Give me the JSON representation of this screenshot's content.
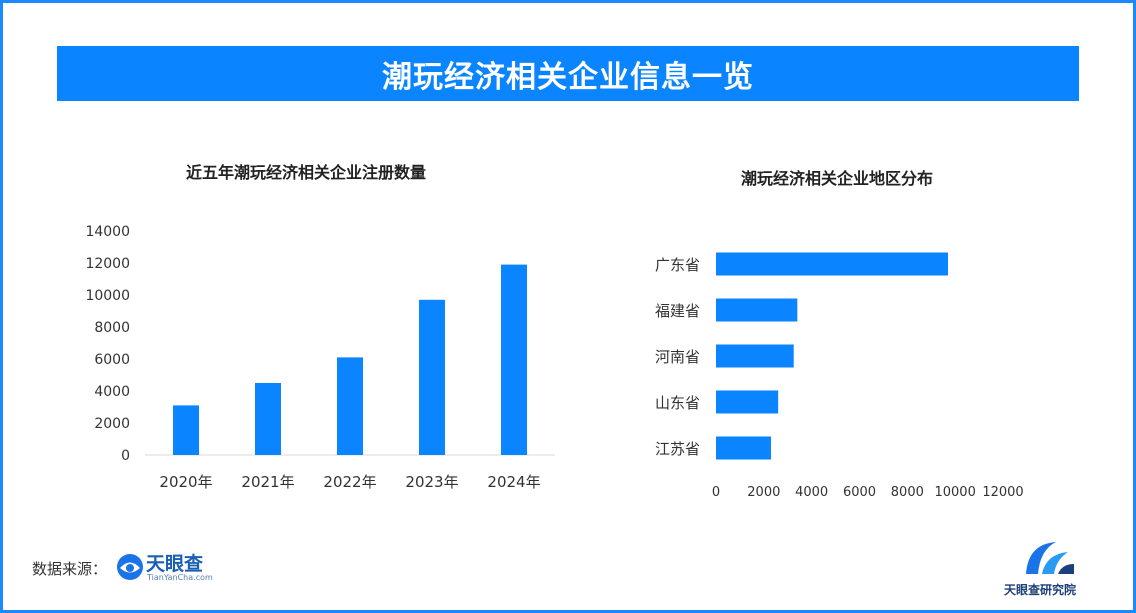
{
  "header": {
    "title": "潮玩经济相关企业信息一览"
  },
  "chart_data": [
    {
      "type": "bar",
      "title": "近五年潮玩经济相关企业注册数量",
      "categories": [
        "2020年",
        "2021年",
        "2022年",
        "2023年",
        "2024年"
      ],
      "values": [
        3100,
        4500,
        6100,
        9700,
        11900
      ],
      "ylim": [
        0,
        14000
      ],
      "yticks": [
        0,
        2000,
        4000,
        6000,
        8000,
        10000,
        12000,
        14000
      ],
      "color": "#0a84ff",
      "grid": false
    },
    {
      "type": "bar",
      "orientation": "horizontal",
      "title": "潮玩经济相关企业地区分布",
      "categories": [
        "广东省",
        "福建省",
        "河南省",
        "山东省",
        "江苏省"
      ],
      "values": [
        9700,
        3400,
        3250,
        2600,
        2300
      ],
      "xlim": [
        0,
        12000
      ],
      "xticks": [
        0,
        2000,
        4000,
        6000,
        8000,
        10000,
        12000
      ],
      "color": "#0a84ff",
      "grid": false
    }
  ],
  "footer": {
    "source_label": "数据来源：",
    "source_logo_name": "天眼查",
    "source_logo_sub": "TianYanCha.com",
    "brand_name": "天眼查研究院"
  },
  "colors": {
    "accent": "#0a84ff",
    "frame": "#1e88ff"
  }
}
